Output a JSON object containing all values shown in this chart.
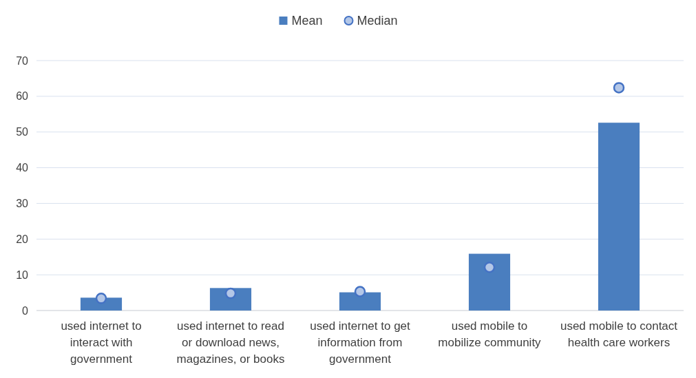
{
  "chart_data": {
    "type": "bar",
    "categories": [
      "used internet to interact with government",
      "used internet to read or download news, magazines, or books",
      "used internet to get information from government",
      "used mobile to mobilize community",
      "used mobile to contact health care workers"
    ],
    "series": [
      {
        "name": "Mean",
        "type": "bar",
        "color": "#4a7ebf",
        "values": [
          3.6,
          6.3,
          5.1,
          15.9,
          52.6
        ]
      },
      {
        "name": "Median",
        "type": "scatter",
        "color": "#b4c7e7",
        "x": [
          "used internet to interact with government",
          "used internet to read or download news, magazines, or books",
          "used internet to get information from government",
          "used mobile to mobilize community",
          "used mobile to contact health care workers"
        ],
        "values": [
          3.4,
          4.8,
          5.3,
          12.1,
          62.4
        ]
      }
    ],
    "ylim": [
      0,
      70
    ],
    "yticks": [
      0,
      10,
      20,
      30,
      40,
      50,
      60,
      70
    ],
    "grid": "y",
    "legend": "top",
    "marker": "circle"
  }
}
